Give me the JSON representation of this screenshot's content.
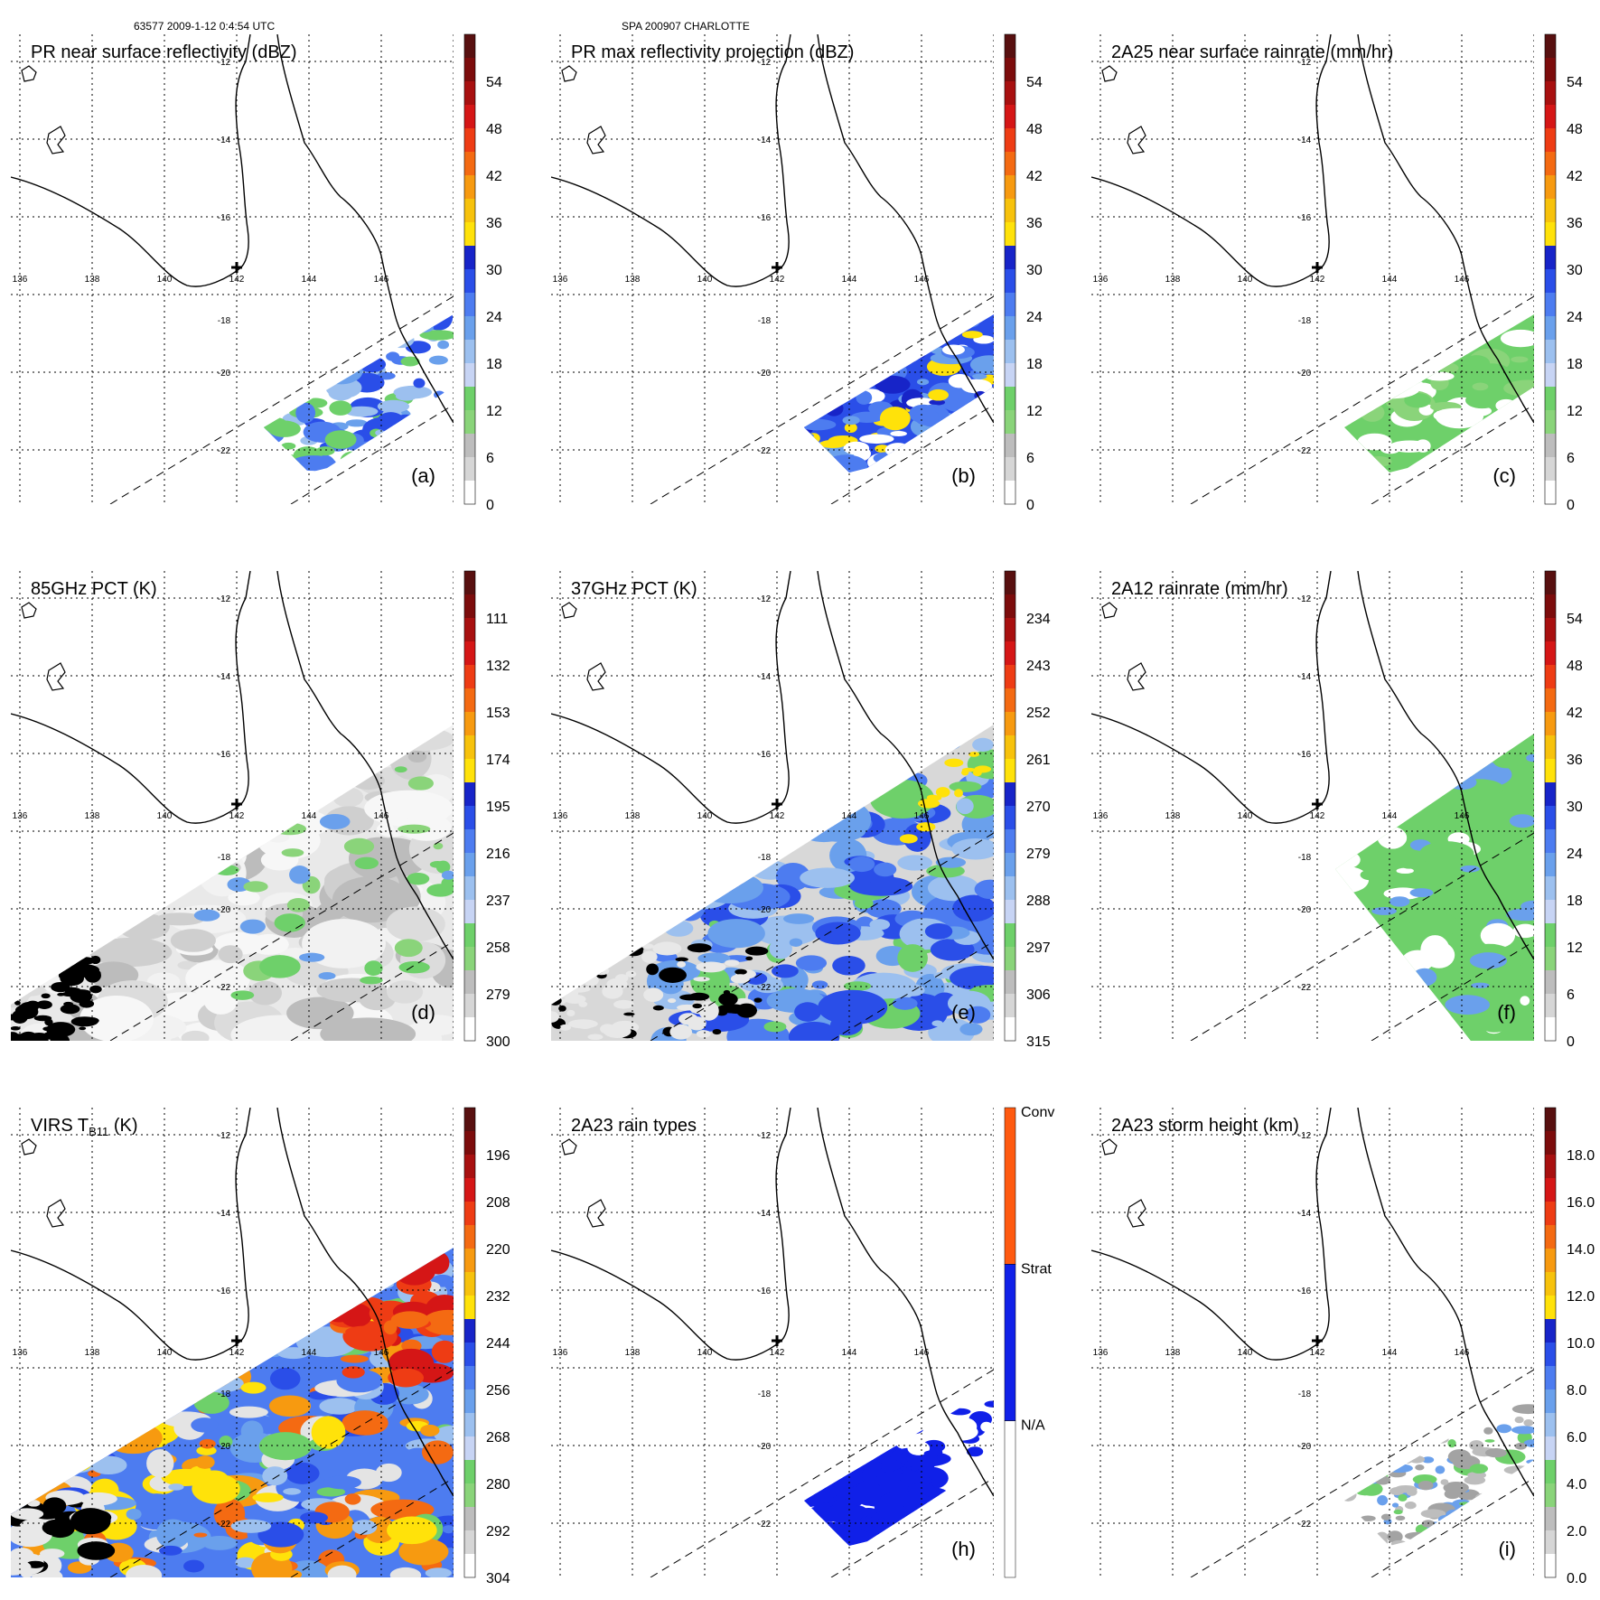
{
  "header": {
    "left": "63577 2009-1-12 0:4:54 UTC",
    "center": "SPA 200907 CHARLOTTE"
  },
  "grid_labels": {
    "lon": [
      "136",
      "138",
      "140",
      "142",
      "144",
      "146"
    ],
    "lat": [
      "-12",
      "-14",
      "-16",
      "-18",
      "-20",
      "-22"
    ]
  },
  "panels": [
    {
      "id": "a",
      "title": "PR near surface reflectivity (dBZ)",
      "label": "(a)",
      "colorbar": {
        "ticks": [
          "54",
          "48",
          "42",
          "36",
          "30",
          "24",
          "18",
          "12",
          "6",
          "0"
        ]
      }
    },
    {
      "id": "b",
      "title": "PR max reflectivity projection (dBZ)",
      "label": "(b)",
      "colorbar": {
        "ticks": [
          "54",
          "48",
          "42",
          "36",
          "30",
          "24",
          "18",
          "12",
          "6",
          "0"
        ]
      }
    },
    {
      "id": "c",
      "title": "2A25 near surface rainrate (mm/hr)",
      "label": "(c)",
      "colorbar": {
        "ticks": [
          "54",
          "48",
          "42",
          "36",
          "30",
          "24",
          "18",
          "12",
          "6",
          "0"
        ]
      }
    },
    {
      "id": "d",
      "title": "85GHz PCT (K)",
      "label": "(d)",
      "colorbar": {
        "ticks": [
          "111",
          "132",
          "153",
          "174",
          "195",
          "216",
          "237",
          "258",
          "279",
          "300"
        ]
      }
    },
    {
      "id": "e",
      "title": "37GHz PCT (K)",
      "label": "(e)",
      "colorbar": {
        "ticks": [
          "234",
          "243",
          "252",
          "261",
          "270",
          "279",
          "288",
          "297",
          "306",
          "315"
        ]
      }
    },
    {
      "id": "f",
      "title": "2A12 rainrate (mm/hr)",
      "label": "(f)",
      "colorbar": {
        "ticks": [
          "54",
          "48",
          "42",
          "36",
          "30",
          "24",
          "18",
          "12",
          "6",
          "0"
        ]
      }
    },
    {
      "id": "g",
      "title": "VIRS T",
      "title_sub": "B11",
      "title_post": " (K)",
      "label": "",
      "colorbar": {
        "ticks": [
          "196",
          "208",
          "220",
          "232",
          "244",
          "256",
          "268",
          "280",
          "292",
          "304"
        ]
      }
    },
    {
      "id": "h",
      "title": "2A23 rain types",
      "label": "(h)",
      "colorbar": {
        "ticks": [
          "Conv",
          "Strat",
          "N/A"
        ]
      }
    },
    {
      "id": "i",
      "title": "2A23 storm height (km)",
      "label": "(i)",
      "colorbar": {
        "ticks": [
          "18.0",
          "16.0",
          "14.0",
          "12.0",
          "10.0",
          "8.0",
          "6.0",
          "4.0",
          "2.0",
          "0.0"
        ]
      }
    }
  ],
  "colors": {
    "bar_levels": [
      "#ffffff",
      "#eeeeee",
      "#d6d6d6",
      "#bdbdbd",
      "#a3a3a3",
      "#8ad47a",
      "#6ed06a",
      "#c7d4f4",
      "#9cc0ef",
      "#6aa0ec",
      "#4d7cf0",
      "#2a4ee8",
      "#1724c8",
      "#ffe20a",
      "#f7c20c",
      "#f79a10",
      "#f46a12",
      "#ee3c14",
      "#d51616",
      "#a81010",
      "#7c0c0c",
      "#581010"
    ],
    "rain_types": [
      "#ffffff",
      "#1020e8",
      "#ff5a10"
    ],
    "coast": "#000000"
  }
}
